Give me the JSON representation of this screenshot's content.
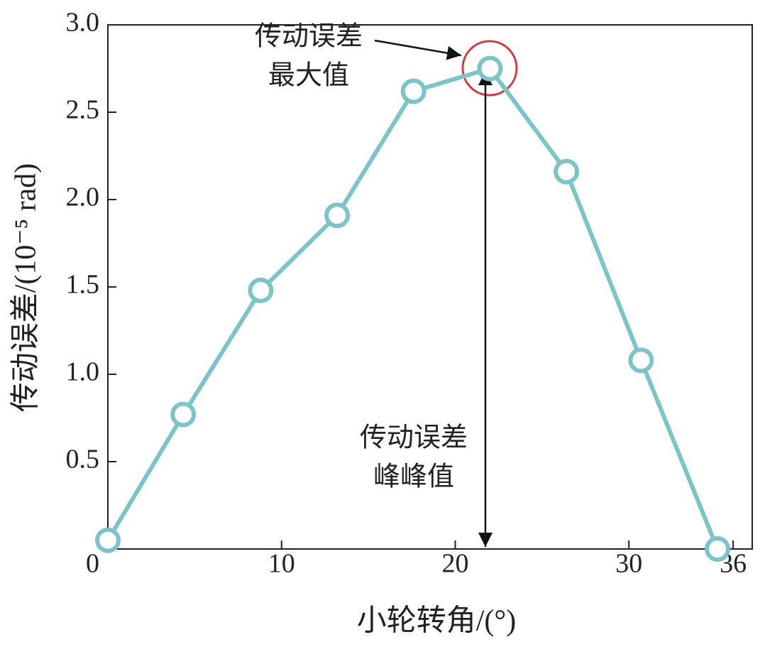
{
  "chart_data": {
    "type": "line",
    "x_label": "小轮转角/(°)",
    "y_label": "传动误差/(10⁻⁵ rad)",
    "x": [
      0,
      4.34,
      8.8,
      13.2,
      17.6,
      22.0,
      26.4,
      30.7,
      35.1
    ],
    "values": [
      0.05,
      0.77,
      1.48,
      1.91,
      2.62,
      2.75,
      2.16,
      1.08,
      0.0
    ],
    "color": "#7cc4c7",
    "xlim": [
      0,
      37.1
    ],
    "ylim": [
      0,
      3.0
    ],
    "xticks": [
      0,
      10,
      20,
      30,
      36
    ],
    "yticks": [
      0.5,
      {
        "value": 1.0,
        "label": "1.0"
      },
      1.5,
      {
        "value": 2.0,
        "label": "2.0"
      },
      2.5,
      {
        "value": 3.0,
        "label": "3.0"
      }
    ],
    "annotations": [
      {
        "lines": [
          "传动误差",
          "最大值"
        ]
      },
      {
        "lines": [
          "传动误差",
          "峰峰值"
        ]
      }
    ]
  }
}
